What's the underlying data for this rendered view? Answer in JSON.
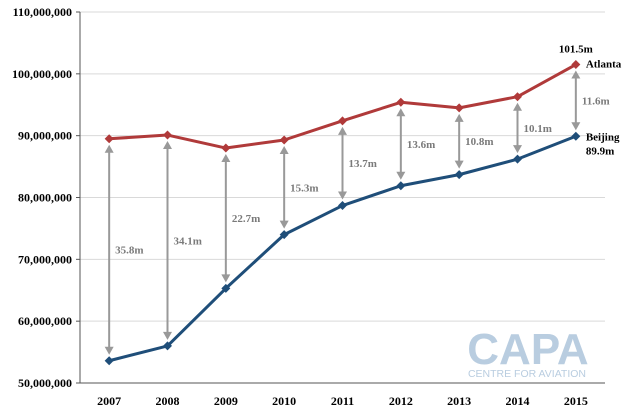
{
  "chart_data": {
    "type": "line",
    "categories": [
      "2007",
      "2008",
      "2009",
      "2010",
      "2011",
      "2012",
      "2013",
      "2014",
      "2015"
    ],
    "series": [
      {
        "name": "Atlanta",
        "color": "#b03a3a",
        "values": [
          89500000,
          90100000,
          88000000,
          89300000,
          92400000,
          95400000,
          94500000,
          96300000,
          101500000
        ]
      },
      {
        "name": "Beijing",
        "color": "#1f4e79",
        "values": [
          53600000,
          56000000,
          65300000,
          74000000,
          78700000,
          81900000,
          83700000,
          86200000,
          89900000
        ]
      }
    ],
    "ylim": [
      50000000,
      110000000
    ],
    "ytick_labels": [
      "50,000,000",
      "60,000,000",
      "70,000,000",
      "80,000,000",
      "90,000,000",
      "100,000,000",
      "110,000,000"
    ],
    "gap_labels": [
      "35.8m",
      "34.1m",
      "22.7m",
      "15.3m",
      "13.7m",
      "13.6m",
      "10.8m",
      "10.1m",
      "11.6m"
    ],
    "end_value_labels": {
      "Atlanta": "101.5m",
      "Beijing": "89.9m"
    },
    "grid": true,
    "gap_arrow_color": "#999999"
  },
  "watermark": {
    "logo_text": "CAPA",
    "tagline": "CENTRE FOR AVIATION",
    "color": "#b9cde0"
  }
}
